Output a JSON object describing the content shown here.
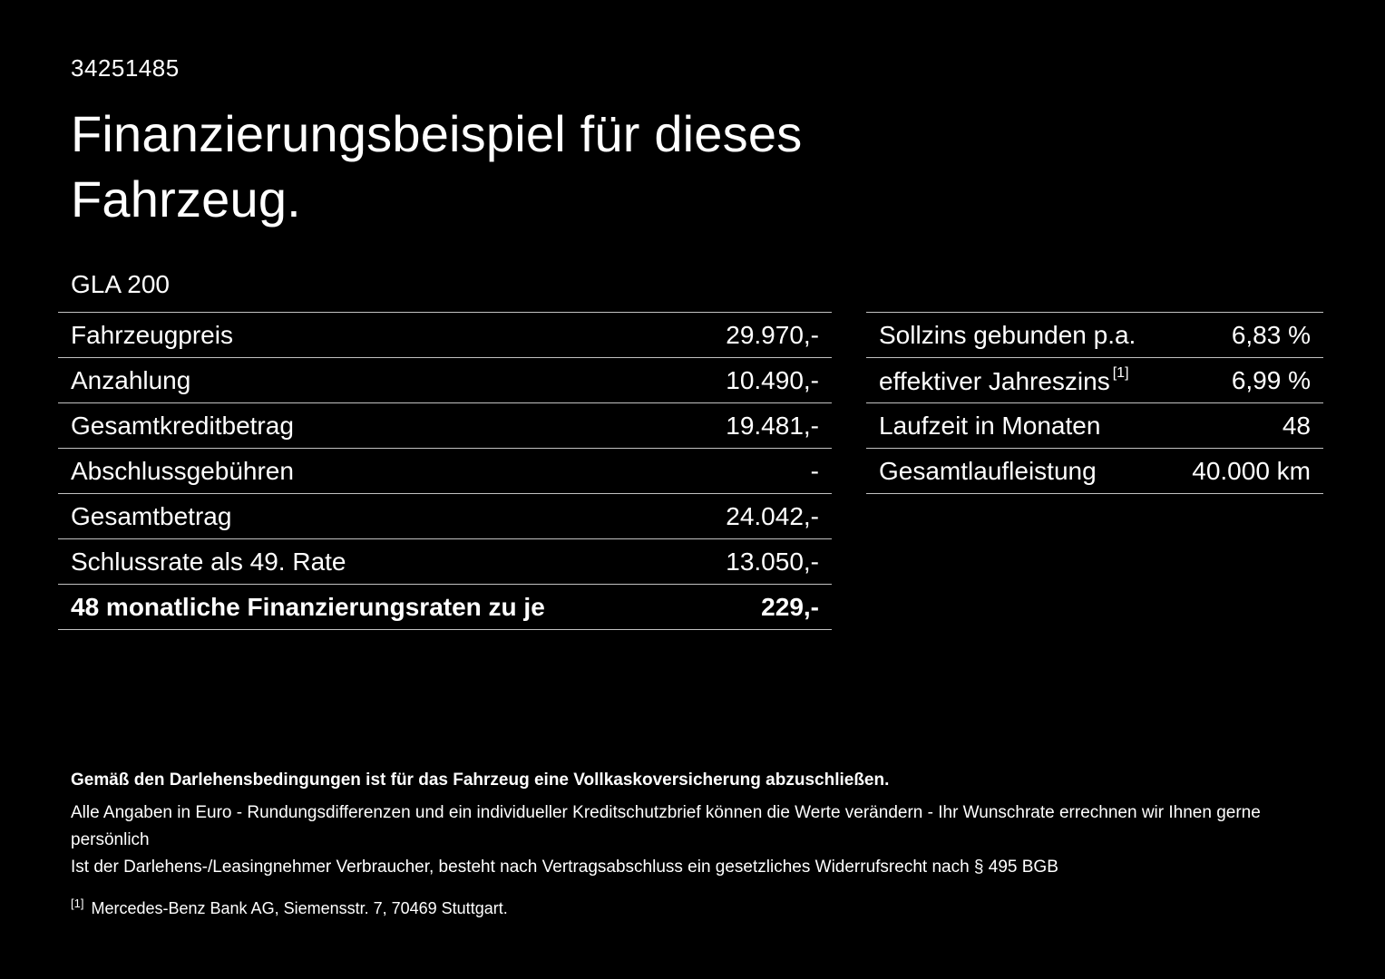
{
  "header": {
    "doc_id": "34251485",
    "title_line1": "Finanzierungsbeispiel für dieses",
    "title_line2": "Fahrzeug.",
    "model": "GLA 200"
  },
  "finance_table": {
    "rows": [
      {
        "label": "Fahrzeugpreis",
        "value": "29.970,-"
      },
      {
        "label": "Anzahlung",
        "value": "10.490,-"
      },
      {
        "label": "Gesamtkreditbetrag",
        "value": "19.481,-"
      },
      {
        "label": "Abschlussgebühren",
        "value": "-"
      },
      {
        "label": "Gesamtbetrag",
        "value": "24.042,-"
      },
      {
        "label": "Schlussrate als 49. Rate",
        "value": "13.050,-"
      },
      {
        "label": "48 monatliche Finanzierungsraten zu je",
        "value": "229,-"
      }
    ]
  },
  "conditions_table": {
    "rows": [
      {
        "label": "Sollzins gebunden p.a.",
        "value": "6,83 %"
      },
      {
        "label": "effektiver Jahreszins",
        "sup": "[1]",
        "value": "6,99 %"
      },
      {
        "label": "Laufzeit in Monaten",
        "value": "48"
      },
      {
        "label": "Gesamtlaufleistung",
        "value": "40.000 km"
      }
    ]
  },
  "footer": {
    "insurance_note": "Gemäß den Darlehensbedingungen ist für das Fahrzeug eine Vollkaskoversicherung abzuschließen.",
    "note_line1": "Alle Angaben in Euro - Rundungsdifferenzen und ein individueller Kreditschutzbrief können die Werte verändern - Ihr Wunschrate errechnen wir Ihnen gerne persönlich",
    "note_line2": "Ist der Darlehens-/Leasingnehmer Verbraucher, besteht nach Vertragsabschluss ein gesetzliches Widerrufsrecht nach § 495 BGB",
    "footnote_marker": "[1]",
    "footnote_text": "Mercedes-Benz Bank AG, Siemensstr. 7, 70469 Stuttgart."
  },
  "colors": {
    "background": "#000000",
    "text": "#ffffff",
    "divider": "#c2c2c2"
  }
}
